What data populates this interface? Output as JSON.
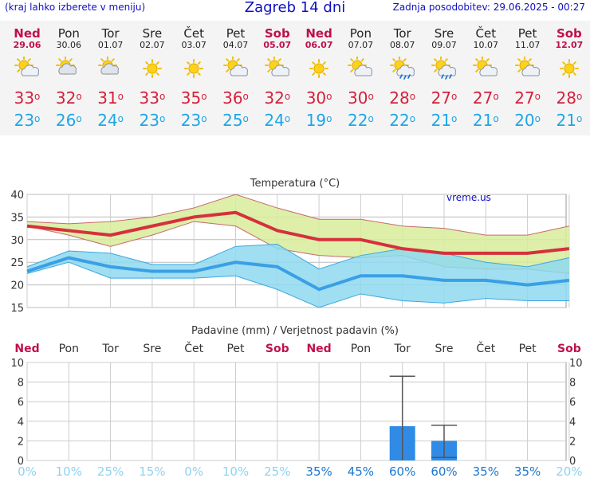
{
  "header": {
    "left_note": "(kraj lahko izberete v meniju)",
    "title": "Zagreb 14 dni",
    "updated": "Zadnja posodobitev: 29.06.2025 - 00:27"
  },
  "days": [
    {
      "name": "Ned",
      "date": "29.06",
      "weekend": true,
      "icon": "sun-cloud-icon",
      "tmax": 33,
      "tmin": 23
    },
    {
      "name": "Pon",
      "date": "30.06",
      "weekend": false,
      "icon": "cloudy-sun-icon",
      "tmax": 32,
      "tmin": 26
    },
    {
      "name": "Tor",
      "date": "01.07",
      "weekend": false,
      "icon": "cloudy-sun-icon",
      "tmax": 31,
      "tmin": 24
    },
    {
      "name": "Sre",
      "date": "02.07",
      "weekend": false,
      "icon": "sun-icon",
      "tmax": 33,
      "tmin": 23
    },
    {
      "name": "Čet",
      "date": "03.07",
      "weekend": false,
      "icon": "sun-icon",
      "tmax": 35,
      "tmin": 23
    },
    {
      "name": "Pet",
      "date": "04.07",
      "weekend": false,
      "icon": "sun-cloud-icon",
      "tmax": 36,
      "tmin": 25
    },
    {
      "name": "Sob",
      "date": "05.07",
      "weekend": true,
      "icon": "sun-cloud-icon",
      "tmax": 32,
      "tmin": 24
    },
    {
      "name": "Ned",
      "date": "06.07",
      "weekend": true,
      "icon": "sun-icon",
      "tmax": 30,
      "tmin": 19
    },
    {
      "name": "Pon",
      "date": "07.07",
      "weekend": false,
      "icon": "sun-cloud-icon",
      "tmax": 30,
      "tmin": 22
    },
    {
      "name": "Tor",
      "date": "08.07",
      "weekend": false,
      "icon": "sun-cloud-rain-icon",
      "tmax": 28,
      "tmin": 22
    },
    {
      "name": "Sre",
      "date": "09.07",
      "weekend": false,
      "icon": "sun-cloud-rain-icon",
      "tmax": 27,
      "tmin": 21
    },
    {
      "name": "Čet",
      "date": "10.07",
      "weekend": false,
      "icon": "sun-cloud-icon",
      "tmax": 27,
      "tmin": 21
    },
    {
      "name": "Pet",
      "date": "11.07",
      "weekend": false,
      "icon": "sun-cloud-icon",
      "tmax": 27,
      "tmin": 20
    },
    {
      "name": "Sob",
      "date": "12.07",
      "weekend": true,
      "icon": "sun-icon",
      "tmax": 28,
      "tmin": 21
    }
  ],
  "colors": {
    "weekend": "#c0104a",
    "tmax": "#d6203a",
    "tmin": "#1ea6e6",
    "max_band": "#d7ec9a",
    "min_band": "#8ed9ee",
    "bar": "#2f8be6",
    "prob_low": "#8fd3f0",
    "prob_high": "#1c78d0",
    "header": "#1010c0"
  },
  "chart_data": [
    {
      "type": "line",
      "title": "Temperatura (°C)",
      "watermark": "vreme.us",
      "ylim": [
        15,
        40
      ],
      "yticks": [
        15,
        20,
        25,
        30,
        35,
        40
      ],
      "x": [
        0,
        1,
        2,
        3,
        4,
        5,
        6,
        7,
        8,
        9,
        10,
        11,
        12,
        13
      ],
      "series": [
        {
          "role": "tmax",
          "values": [
            33,
            32,
            31,
            33,
            35,
            36,
            32,
            30,
            30,
            28,
            27,
            27,
            27,
            28
          ]
        },
        {
          "role": "tmax_band_high",
          "values": [
            34,
            33.5,
            34,
            35,
            37,
            40,
            37,
            34.5,
            34.5,
            33,
            32.5,
            31,
            31,
            33
          ]
        },
        {
          "role": "tmax_band_low",
          "values": [
            33,
            31,
            28.5,
            31,
            34,
            33,
            28,
            26.5,
            26,
            26.5,
            24,
            23.5,
            23.5,
            22.5
          ]
        },
        {
          "role": "tmin",
          "values": [
            23,
            26,
            24,
            23,
            23,
            25,
            24,
            19,
            22,
            22,
            21,
            21,
            20,
            21
          ]
        },
        {
          "role": "tmin_band_high",
          "values": [
            24,
            27.5,
            27,
            24.5,
            24.5,
            28.5,
            29,
            23.5,
            26.5,
            28,
            27,
            25,
            24,
            26
          ]
        },
        {
          "role": "tmin_band_low",
          "values": [
            22.5,
            25,
            21.5,
            21.5,
            21.5,
            22,
            19,
            15,
            18,
            16.5,
            16,
            17,
            16.5,
            16.5
          ]
        }
      ]
    },
    {
      "type": "bar",
      "title": "Padavine (mm) / Verjetnost padavin (%)",
      "categories": [
        "Ned",
        "Pon",
        "Tor",
        "Sre",
        "Čet",
        "Pet",
        "Sob",
        "Ned",
        "Pon",
        "Tor",
        "Sre",
        "Čet",
        "Pet",
        "Sob"
      ],
      "weekend": [
        true,
        false,
        false,
        false,
        false,
        false,
        true,
        true,
        false,
        false,
        false,
        false,
        false,
        true
      ],
      "ylim": [
        0,
        10
      ],
      "yticks": [
        0,
        2,
        4,
        6,
        8,
        10
      ],
      "yticklabels": [
        "0",
        "2",
        "4",
        "6",
        "8",
        "10"
      ],
      "values": [
        0,
        0,
        0,
        0,
        0,
        0,
        0,
        0,
        0,
        3.5,
        2.0,
        0,
        0,
        0
      ],
      "error_high": [
        0,
        0,
        0,
        0,
        0,
        0,
        0,
        0,
        0,
        8.6,
        3.6,
        0,
        0,
        0
      ],
      "error_low": [
        0,
        0,
        0,
        0,
        0,
        0,
        0,
        0,
        0,
        0,
        0.3,
        0,
        0,
        0
      ],
      "probability": [
        "0%",
        "10%",
        "25%",
        "15%",
        "0%",
        "10%",
        "25%",
        "35%",
        "45%",
        "60%",
        "60%",
        "35%",
        "35%",
        "20%"
      ]
    }
  ]
}
